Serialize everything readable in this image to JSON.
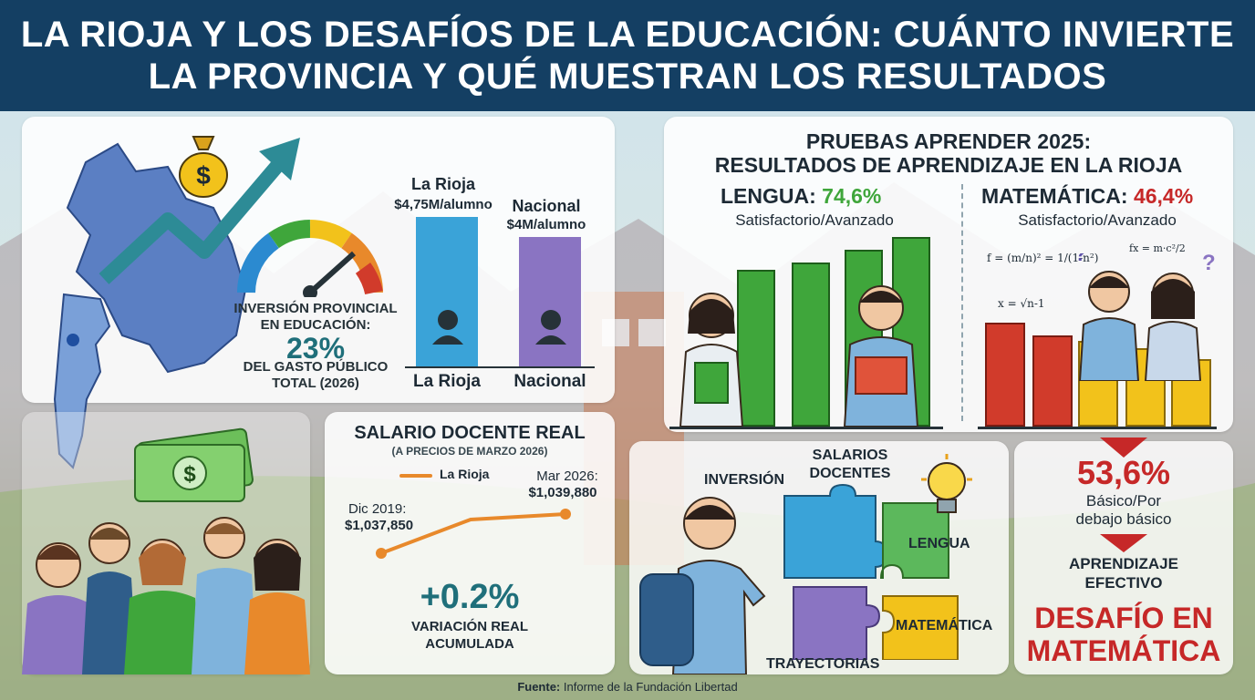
{
  "header": {
    "title_line1": "LA RIOJA Y LOS DESAFÍOS DE LA EDUCACIÓN: CUÁNTO INVIERTE",
    "title_line2": "LA PROVINCIA Y QUÉ MUESTRAN LOS RESULTADOS"
  },
  "investment": {
    "label_line1": "INVERSIÓN PROVINCIAL",
    "label_line2": "EN EDUCACIÓN:",
    "percent": "23%",
    "sub_line1": "DEL GASTO PÚBLICO",
    "sub_line2": "TOTAL (2026)",
    "bar_left_name": "La Rioja",
    "bar_left_value": "$4,75M/alumno",
    "bar_right_name": "Nacional",
    "bar_right_value": "$4M/alumno",
    "bar_left_caption": "La Rioja",
    "bar_right_caption": "Nacional"
  },
  "salary": {
    "title": "SALARIO DOCENTE REAL",
    "subtitle": "(A PRECIOS DE MARZO 2026)",
    "legend": "La Rioja",
    "start_label": "Dic 2019:",
    "start_value": "$1,037,850",
    "end_label": "Mar 2026:",
    "end_value": "$1,039,880",
    "variation": "+0.2%",
    "variation_line1": "VARIACIÓN REAL",
    "variation_line2": "ACUMULADA"
  },
  "aprender": {
    "title_line1": "PRUEBAS APRENDER 2025:",
    "title_line2": "RESULTADOS DE APRENDIZAJE EN LA RIOJA",
    "lengua_label": "LENGUA:",
    "lengua_value": "74,6%",
    "lengua_sub": "Satisfactorio/Avanzado",
    "mate_label": "MATEMÁTICA:",
    "mate_value": "46,4%",
    "mate_sub": "Satisfactorio/Avanzado",
    "formula1": "f = (m/n)² = 1/(1-n²)",
    "formula2": "fx = m·c²/2",
    "formula3": "x = √n-1"
  },
  "puzzle": {
    "inversion": "INVERSIÓN",
    "salarios_line1": "SALARIOS",
    "salarios_line2": "DOCENTES",
    "lengua": "LENGUA",
    "matematica": "MATEMÁTICA",
    "trayectorias": "TRAYECTORIAS"
  },
  "result": {
    "percent": "53,6%",
    "line1": "Básico/Por",
    "line2": "debajo básico",
    "aprendizaje_line1": "APRENDIZAJE",
    "aprendizaje_line2": "EFECTIVO",
    "desafio_line1": "DESAFÍO EN",
    "desafio_line2": "MATEMÁTICA"
  },
  "footer": {
    "source_label": "Fuente:",
    "source_text": "Informe de la Fundación Libertad"
  },
  "colors": {
    "header_bg": "#143f63",
    "teal": "#1f6f7a",
    "green": "#3fa63b",
    "red": "#c62828",
    "orange": "#e8892b",
    "blue_bar": "#3aa3d8",
    "purple_bar": "#8a74c2",
    "yellow": "#f2c21b"
  },
  "icons": [
    "money-bag-icon",
    "rising-arrow-icon",
    "gauge-icon",
    "person-icon",
    "lightbulb-icon",
    "puzzle-icon",
    "banknote-icon",
    "down-arrow-icon"
  ]
}
